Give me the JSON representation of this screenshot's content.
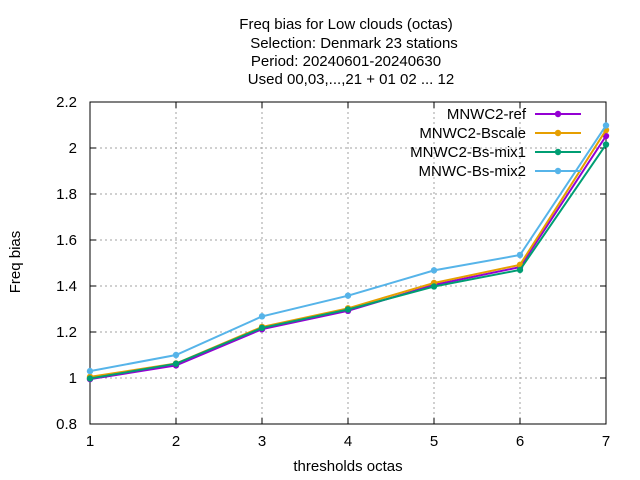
{
  "chart_data": {
    "type": "line",
    "title_lines": [
      "Freq bias  for Low clouds (octas)",
      "Selection: Denmark     23 stations",
      "Period: 20240601-20240630",
      "Used 00,03,...,21 + 01 02 ... 12"
    ],
    "xlabel": "thresholds octas",
    "ylabel": "Freq bias",
    "xlim": [
      1,
      7
    ],
    "ylim": [
      0.8,
      2.2
    ],
    "xticks": [
      1,
      2,
      3,
      4,
      5,
      6,
      7
    ],
    "yticks": [
      0.8,
      1,
      1.2,
      1.4,
      1.6,
      1.8,
      2,
      2.2
    ],
    "ytick_labels": [
      "0.8",
      "1",
      "1.2",
      "1.4",
      "1.6",
      "1.8",
      "2",
      "2.2"
    ],
    "grid": true,
    "legend_position": "top-right",
    "x": [
      1,
      2,
      3,
      4,
      5,
      6,
      7
    ],
    "series": [
      {
        "name": "MNWC2-ref",
        "color": "#9400d3",
        "values": [
          0.995,
          1.055,
          1.212,
          1.292,
          1.405,
          1.482,
          2.052
        ]
      },
      {
        "name": "MNWC2-Bscale",
        "color": "#e69f00",
        "values": [
          1.005,
          1.063,
          1.222,
          1.303,
          1.413,
          1.492,
          2.078
        ]
      },
      {
        "name": "MNWC2-Bs-mix1",
        "color": "#009e73",
        "values": [
          0.998,
          1.062,
          1.218,
          1.298,
          1.398,
          1.47,
          2.015
        ]
      },
      {
        "name": "MNWC-Bs-mix2",
        "color": "#56b4e9",
        "values": [
          1.03,
          1.1,
          1.268,
          1.358,
          1.468,
          1.535,
          2.098
        ]
      }
    ]
  }
}
